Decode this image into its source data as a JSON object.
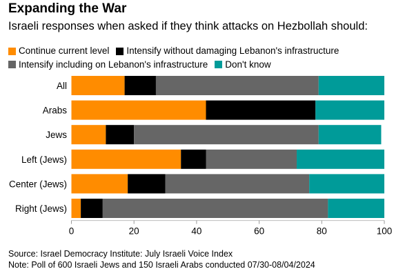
{
  "title": "Expanding the War",
  "subtitle": "Israeli responses when asked if they think attacks on Hezbollah should:",
  "source": "Source: Israel Democracy Institute: July Israeli Voice Index",
  "note": "Note: Poll of 600 Israeli Jews and 150 Israeli Arabs conducted 07/30-08/04/2024",
  "chart_data": {
    "type": "bar",
    "orientation": "horizontal",
    "stacked": true,
    "categories": [
      "All",
      "Arabs",
      "Jews",
      "Left (Jews)",
      "Center (Jews)",
      "Right (Jews)"
    ],
    "series": [
      {
        "name": "Continue current level",
        "color": "#ff8c00",
        "values": [
          17,
          43,
          11,
          35,
          18,
          3
        ]
      },
      {
        "name": "Intensify without damaging Lebanon's infrastructure",
        "color": "#000000",
        "values": [
          10,
          35,
          9,
          8,
          12,
          7
        ]
      },
      {
        "name": "Intensify including on Lebanon's infrastructure",
        "color": "#666666",
        "values": [
          52,
          0,
          59,
          29,
          46,
          72
        ]
      },
      {
        "name": "Don't know",
        "color": "#009b99",
        "values": [
          21,
          22,
          20,
          28,
          24,
          18
        ]
      }
    ],
    "xlim": [
      0,
      100
    ],
    "xticks": [
      0,
      20,
      40,
      60,
      80,
      100
    ],
    "legend_position": "top",
    "grid": false
  }
}
